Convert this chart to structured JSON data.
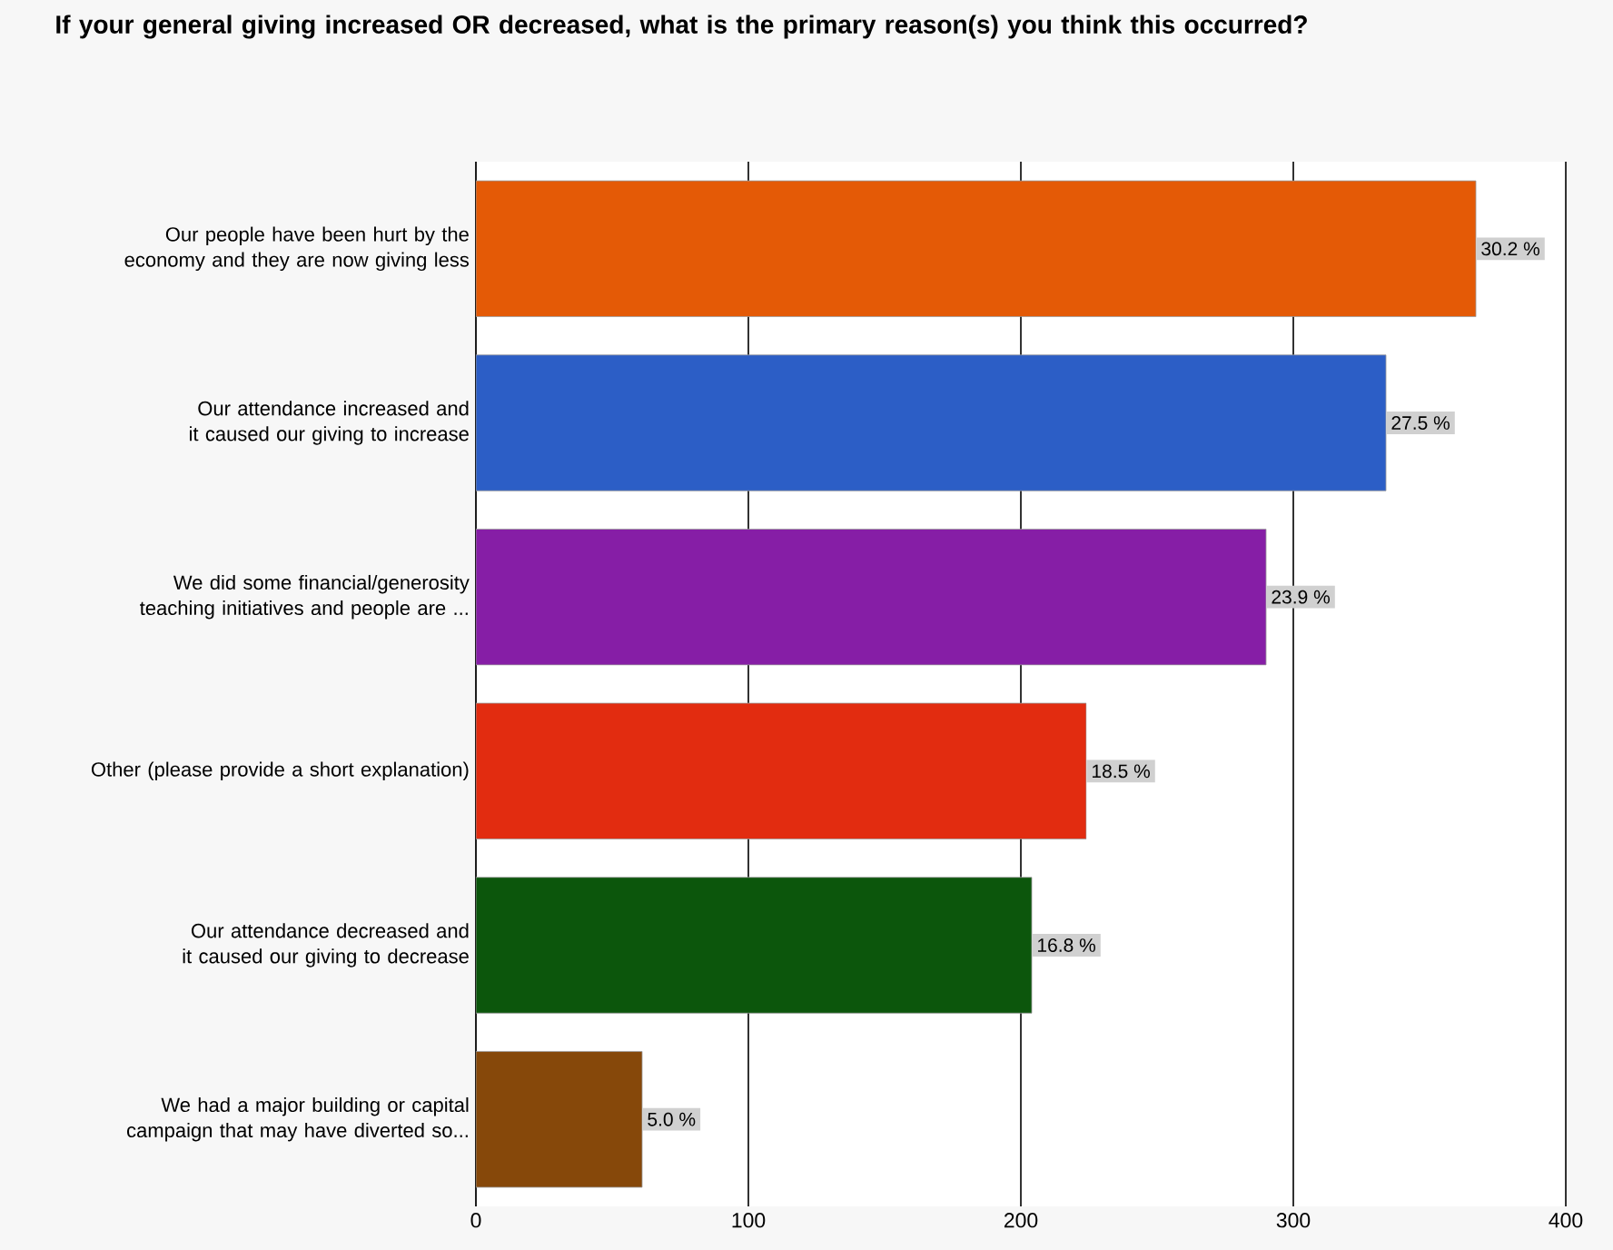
{
  "chart_data": {
    "type": "bar",
    "orientation": "horizontal",
    "title": "If your general giving increased OR decreased, what is the primary reason(s) you think this occurred?",
    "categories": [
      "Our people have been hurt by the economy and they are now giving less",
      "Our attendance increased and it caused our giving to increase",
      "We did some financial/generosity teaching initiatives and people are ...",
      "Other (please provide a short explanation)",
      "Our attendance decreased and it caused our giving to decrease",
      "We had a major building or capital campaign that may have diverted so..."
    ],
    "values": [
      367,
      334,
      290,
      224,
      204,
      61
    ],
    "colors": [
      "#e45a06",
      "#2c5ec6",
      "#861ea6",
      "#e22c10",
      "#0c560c",
      "#86480a"
    ],
    "annotations": [
      {
        "text": "30.2 %",
        "x": 367,
        "y": "Our people have been hurt by the economy and they are now giving less"
      },
      {
        "text": "27.5 %",
        "x": 334,
        "y": "Our attendance increased and it caused our giving to increase"
      },
      {
        "text": "23.9 %",
        "x": 290,
        "y": "We did some financial/generosity teaching initiatives and people are ..."
      },
      {
        "text": "18.5 %",
        "x": 224,
        "y": "Other (please provide a short explanation)"
      },
      {
        "text": "16.8 %",
        "x": 204,
        "y": "Our attendance decreased and it caused our giving to decrease"
      },
      {
        "text": "5.0 %",
        "x": 61,
        "y": "We had a major building or capital campaign that may have diverted so..."
      }
    ],
    "xlim": [
      0,
      400
    ],
    "xticks": [
      0,
      100,
      200,
      300,
      400
    ],
    "grid": "x"
  }
}
